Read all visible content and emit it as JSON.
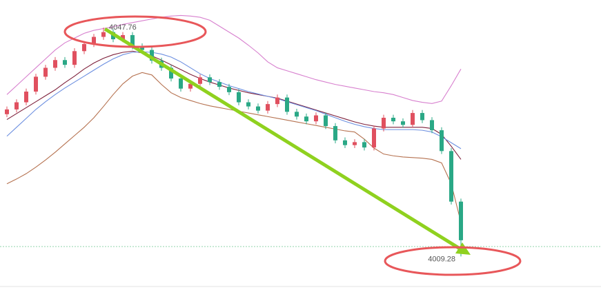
{
  "chart_data": {
    "type": "candlestick",
    "up_color": "#e0505f",
    "down_color": "#2aa886",
    "ylim": [
      4003.3,
      4052.4
    ],
    "open": [
      4033.2,
      4034.0,
      4035.2,
      4037.0,
      4039.5,
      4041.0,
      4042.3,
      4041.5,
      4043.8,
      4045.0,
      4046.2,
      4047.0,
      4045.8,
      4046.5,
      4044.6,
      4044.0,
      4042.2,
      4041.0,
      4039.2,
      4037.5,
      4038.3,
      4039.4,
      4038.6,
      4037.8,
      4036.9,
      4035.2,
      4034.5,
      4033.8,
      4034.9,
      4036.0,
      4033.6,
      4032.8,
      4032.0,
      4033.0,
      4031.2,
      4028.8,
      4028.0,
      4028.5,
      4027.6,
      4030.8,
      4032.6,
      4032.0,
      4031.4,
      4033.4,
      4032.2,
      4030.5,
      4027.0,
      4018.5
    ],
    "high": [
      4034.5,
      4035.7,
      4037.5,
      4040.0,
      4041.5,
      4042.8,
      4042.8,
      4044.3,
      4045.5,
      4046.7,
      4047.76,
      4047.5,
      4047.0,
      4047.0,
      4045.1,
      4044.5,
      4042.7,
      4041.5,
      4039.7,
      4038.8,
      4039.9,
      4039.9,
      4039.1,
      4038.3,
      4037.4,
      4035.7,
      4035.0,
      4035.4,
      4036.5,
      4036.5,
      4034.1,
      4033.3,
      4033.5,
      4033.5,
      4031.7,
      4029.3,
      4029.0,
      4029.0,
      4031.3,
      4033.1,
      4033.1,
      4032.5,
      4033.9,
      4033.9,
      4032.7,
      4031.0,
      4027.5,
      4019.0
    ],
    "low": [
      4032.7,
      4033.5,
      4034.7,
      4036.5,
      4039.0,
      4040.5,
      4041.0,
      4041.0,
      4043.3,
      4044.5,
      4045.7,
      4045.3,
      4045.3,
      4044.1,
      4043.5,
      4041.7,
      4040.5,
      4038.7,
      4037.0,
      4037.0,
      4037.8,
      4038.1,
      4037.3,
      4036.4,
      4034.7,
      4034.0,
      4033.3,
      4033.3,
      4034.4,
      4033.1,
      4032.3,
      4031.5,
      4031.5,
      4030.7,
      4028.3,
      4027.5,
      4027.5,
      4027.1,
      4027.1,
      4030.3,
      4031.5,
      4030.9,
      4030.9,
      4031.7,
      4030.0,
      4026.5,
      4018.0,
      4009.28
    ],
    "close": [
      4034.0,
      4035.2,
      4037.0,
      4039.5,
      4041.0,
      4042.3,
      4041.5,
      4043.8,
      4045.0,
      4046.2,
      4047.0,
      4045.8,
      4046.5,
      4044.6,
      4044.0,
      4042.2,
      4041.0,
      4039.2,
      4037.5,
      4038.3,
      4039.4,
      4038.6,
      4037.8,
      4036.9,
      4035.2,
      4034.5,
      4033.8,
      4034.9,
      4036.0,
      4033.6,
      4032.8,
      4032.0,
      4033.0,
      4031.2,
      4028.8,
      4028.0,
      4028.5,
      4027.6,
      4030.8,
      4032.6,
      4032.0,
      4031.4,
      4033.4,
      4032.2,
      4030.5,
      4027.0,
      4018.5,
      4012.0
    ],
    "lines": [
      {
        "color": "#d77fce",
        "values": [
          4036.5,
          4038.0,
          4039.5,
          4041.0,
          4042.5,
          4044.0,
          4045.2,
          4046.0,
          4046.8,
          4047.3,
          4047.6,
          4047.9,
          4048.3,
          4048.6,
          4048.9,
          4049.2,
          4049.5,
          4049.7,
          4049.8,
          4049.7,
          4049.5,
          4049.0,
          4048.0,
          4047.0,
          4046.0,
          4044.8,
          4043.5,
          4042.0,
          4041.0,
          4040.5,
          4040.0,
          4039.5,
          4039.0,
          4038.6,
          4038.2,
          4037.9,
          4037.6,
          4037.3,
          4037.0,
          4036.8,
          4036.5,
          4036.0,
          4035.5,
          4035.2,
          4035.0,
          4035.4,
          4038.0,
          4040.8
        ]
      },
      {
        "color": "#7d1f3a",
        "values": [
          4032.3,
          4033.3,
          4034.3,
          4035.3,
          4036.3,
          4037.3,
          4038.5,
          4039.6,
          4040.8,
          4041.8,
          4042.6,
          4043.2,
          4043.6,
          4043.8,
          4043.5,
          4043.0,
          4042.3,
          4041.5,
          4040.7,
          4039.9,
          4039.2,
          4038.6,
          4038.1,
          4037.6,
          4037.2,
          4036.8,
          4036.5,
          4036.2,
          4035.9,
          4035.4,
          4034.9,
          4034.4,
          4033.9,
          4033.4,
          4032.9,
          4032.4,
          4031.9,
          4031.5,
          4031.2,
          4031.0,
          4031.0,
          4031.0,
          4031.0,
          4031.0,
          4030.8,
          4029.8,
          4027.8,
          4025.6
        ]
      },
      {
        "color": "#6c8fe0",
        "values": [
          4029.5,
          4031.0,
          4032.5,
          4034.0,
          4035.3,
          4036.5,
          4037.6,
          4038.6,
          4039.6,
          4040.6,
          4041.6,
          4042.5,
          4043.2,
          4043.6,
          4043.7,
          4043.6,
          4043.3,
          4042.8,
          4042.0,
          4041.0,
          4040.0,
          4039.2,
          4038.6,
          4038.0,
          4037.5,
          4037.0,
          4036.6,
          4036.2,
          4035.8,
          4035.3,
          4034.8,
          4034.3,
          4033.8,
          4033.2,
          4032.6,
          4032.0,
          4031.5,
          4031.1,
          4030.8,
          4030.6,
          4030.6,
          4030.6,
          4030.6,
          4030.5,
          4030.2,
          4029.4,
          4028.4,
          4027.4
        ]
      },
      {
        "color": "#b5714f",
        "values": [
          4021.5,
          4022.3,
          4023.2,
          4024.3,
          4025.5,
          4026.8,
          4028.2,
          4029.6,
          4031.0,
          4032.6,
          4034.5,
          4036.5,
          4038.3,
          4039.6,
          4040.2,
          4039.8,
          4038.2,
          4036.8,
          4036.0,
          4035.5,
          4035.0,
          4034.6,
          4034.3,
          4034.0,
          4033.7,
          4033.4,
          4033.1,
          4032.8,
          4032.5,
          4032.2,
          4031.9,
          4031.6,
          4031.3,
          4031.0,
          4030.7,
          4030.4,
          4030.2,
          4029.0,
          4027.5,
          4026.5,
          4026.2,
          4026.0,
          4025.9,
          4025.8,
          4025.6,
          4025.0,
          4021.5,
          4015.0
        ]
      }
    ]
  }
}
